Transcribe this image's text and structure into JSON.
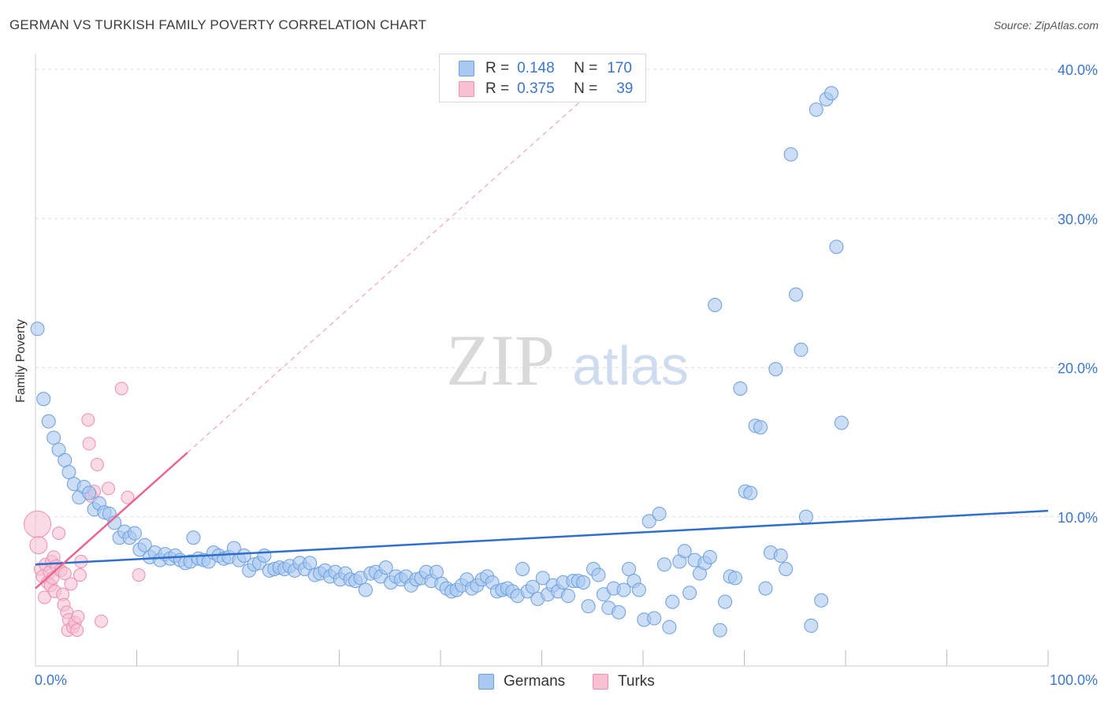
{
  "header": {
    "title": "GERMAN VS TURKISH FAMILY POVERTY CORRELATION CHART",
    "source": "Source: ZipAtlas.com"
  },
  "watermark": {
    "zip": "ZIP",
    "atlas": "atlas"
  },
  "stats_legend": {
    "rows": [
      {
        "r_label": "R =",
        "r_value": "0.148",
        "n_label": "N =",
        "n_value": "170",
        "color": "#a9c8f0",
        "border": "#6c9fde"
      },
      {
        "r_label": "R =",
        "r_value": "0.375",
        "n_label": "N =",
        "n_value": "39",
        "color": "#f7c1d2",
        "border": "#ec8fb0"
      }
    ]
  },
  "colors": {
    "germans_fill": "#a9c8f0",
    "germans_stroke": "#6c9fde",
    "germans_line": "#2f6fcc",
    "turks_fill": "#f7c1d2",
    "turks_stroke": "#ec8fb0",
    "turks_line": "#e8658f",
    "tick_label": "#3b77c8",
    "grid": "#dddddd"
  },
  "chart_data": {
    "type": "scatter",
    "title": "GERMAN VS TURKISH FAMILY POVERTY CORRELATION CHART",
    "xlabel": "",
    "ylabel": "Family Poverty",
    "xlim": [
      0,
      100
    ],
    "ylim": [
      0,
      40
    ],
    "x_tick_labels": [
      "0.0%",
      "100.0%"
    ],
    "y_ticks": [
      10,
      20,
      30,
      40
    ],
    "y_tick_labels": [
      "10.0%",
      "20.0%",
      "30.0%",
      "40.0%"
    ],
    "grid": true,
    "legend_position": "bottom-center",
    "series": [
      {
        "name": "Germans",
        "r": 0.148,
        "n": 170,
        "trend": {
          "x": [
            0,
            100
          ],
          "y": [
            6.8,
            10.4
          ]
        },
        "points": [
          [
            0.2,
            22.6
          ],
          [
            0.8,
            17.9
          ],
          [
            1.3,
            16.4
          ],
          [
            1.8,
            15.3
          ],
          [
            2.3,
            14.5
          ],
          [
            2.9,
            13.8
          ],
          [
            3.3,
            13.0
          ],
          [
            3.8,
            12.2
          ],
          [
            4.3,
            11.3
          ],
          [
            4.8,
            12.0
          ],
          [
            5.3,
            11.6
          ],
          [
            5.8,
            10.5
          ],
          [
            6.3,
            10.9
          ],
          [
            6.8,
            10.3
          ],
          [
            7.3,
            10.2
          ],
          [
            7.8,
            9.6
          ],
          [
            8.3,
            8.6
          ],
          [
            8.8,
            9.0
          ],
          [
            9.3,
            8.6
          ],
          [
            9.8,
            8.9
          ],
          [
            10.3,
            7.8
          ],
          [
            10.8,
            8.1
          ],
          [
            11.3,
            7.3
          ],
          [
            11.8,
            7.6
          ],
          [
            12.3,
            7.1
          ],
          [
            12.8,
            7.5
          ],
          [
            13.3,
            7.2
          ],
          [
            13.8,
            7.4
          ],
          [
            14.3,
            7.1
          ],
          [
            14.8,
            6.9
          ],
          [
            15.3,
            7.0
          ],
          [
            15.6,
            8.6
          ],
          [
            16.1,
            7.2
          ],
          [
            16.6,
            7.1
          ],
          [
            17.1,
            7.0
          ],
          [
            17.6,
            7.6
          ],
          [
            18.1,
            7.4
          ],
          [
            18.6,
            7.2
          ],
          [
            19.1,
            7.3
          ],
          [
            19.6,
            7.9
          ],
          [
            20.1,
            7.1
          ],
          [
            20.6,
            7.4
          ],
          [
            21.1,
            6.4
          ],
          [
            21.6,
            6.8
          ],
          [
            22.1,
            6.9
          ],
          [
            22.6,
            7.4
          ],
          [
            23.1,
            6.4
          ],
          [
            23.6,
            6.5
          ],
          [
            24.1,
            6.6
          ],
          [
            24.6,
            6.5
          ],
          [
            25.1,
            6.7
          ],
          [
            25.6,
            6.4
          ],
          [
            26.1,
            6.9
          ],
          [
            26.6,
            6.5
          ],
          [
            27.1,
            6.9
          ],
          [
            27.6,
            6.1
          ],
          [
            28.1,
            6.2
          ],
          [
            28.6,
            6.4
          ],
          [
            29.1,
            6.0
          ],
          [
            29.6,
            6.3
          ],
          [
            30.1,
            5.8
          ],
          [
            30.6,
            6.2
          ],
          [
            31.1,
            5.8
          ],
          [
            31.6,
            5.7
          ],
          [
            32.1,
            5.9
          ],
          [
            32.6,
            5.1
          ],
          [
            33.1,
            6.2
          ],
          [
            33.6,
            6.3
          ],
          [
            34.1,
            6.0
          ],
          [
            34.6,
            6.6
          ],
          [
            35.1,
            5.6
          ],
          [
            35.6,
            6.0
          ],
          [
            36.1,
            5.8
          ],
          [
            36.6,
            6.0
          ],
          [
            37.1,
            5.4
          ],
          [
            37.6,
            5.8
          ],
          [
            38.1,
            5.9
          ],
          [
            38.6,
            6.3
          ],
          [
            39.1,
            5.7
          ],
          [
            39.6,
            6.3
          ],
          [
            40.1,
            5.5
          ],
          [
            40.6,
            5.2
          ],
          [
            41.1,
            5.0
          ],
          [
            41.6,
            5.1
          ],
          [
            42.1,
            5.4
          ],
          [
            42.6,
            5.8
          ],
          [
            43.1,
            5.2
          ],
          [
            43.6,
            5.4
          ],
          [
            44.1,
            5.8
          ],
          [
            44.6,
            6.0
          ],
          [
            45.1,
            5.6
          ],
          [
            45.6,
            5.0
          ],
          [
            46.1,
            5.1
          ],
          [
            46.6,
            5.2
          ],
          [
            47.1,
            5.0
          ],
          [
            47.6,
            4.7
          ],
          [
            48.1,
            6.5
          ],
          [
            48.6,
            5.0
          ],
          [
            49.1,
            5.3
          ],
          [
            49.6,
            4.5
          ],
          [
            50.1,
            5.9
          ],
          [
            50.6,
            4.8
          ],
          [
            51.1,
            5.4
          ],
          [
            51.6,
            5.0
          ],
          [
            52.1,
            5.6
          ],
          [
            52.6,
            4.7
          ],
          [
            53.1,
            5.7
          ],
          [
            53.6,
            5.7
          ],
          [
            54.1,
            5.6
          ],
          [
            54.6,
            4.0
          ],
          [
            55.1,
            6.5
          ],
          [
            55.6,
            6.1
          ],
          [
            56.1,
            4.8
          ],
          [
            56.6,
            3.9
          ],
          [
            57.1,
            5.2
          ],
          [
            57.6,
            3.6
          ],
          [
            58.1,
            5.1
          ],
          [
            58.6,
            6.5
          ],
          [
            59.1,
            5.7
          ],
          [
            59.6,
            5.1
          ],
          [
            60.1,
            3.1
          ],
          [
            60.6,
            9.7
          ],
          [
            61.1,
            3.2
          ],
          [
            61.6,
            10.2
          ],
          [
            62.1,
            6.8
          ],
          [
            62.6,
            2.6
          ],
          [
            62.9,
            4.3
          ],
          [
            63.6,
            7.0
          ],
          [
            64.1,
            7.7
          ],
          [
            64.6,
            4.9
          ],
          [
            65.1,
            7.1
          ],
          [
            65.6,
            6.2
          ],
          [
            66.1,
            6.9
          ],
          [
            66.6,
            7.3
          ],
          [
            67.1,
            24.2
          ],
          [
            67.6,
            2.4
          ],
          [
            68.1,
            4.3
          ],
          [
            68.6,
            6.0
          ],
          [
            69.1,
            5.9
          ],
          [
            69.6,
            18.6
          ],
          [
            70.1,
            11.7
          ],
          [
            70.6,
            11.6
          ],
          [
            71.1,
            16.1
          ],
          [
            71.6,
            16.0
          ],
          [
            72.1,
            5.2
          ],
          [
            72.6,
            7.6
          ],
          [
            73.1,
            19.9
          ],
          [
            73.6,
            7.4
          ],
          [
            74.1,
            6.5
          ],
          [
            74.6,
            34.3
          ],
          [
            75.1,
            24.9
          ],
          [
            75.6,
            21.2
          ],
          [
            76.1,
            10.0
          ],
          [
            76.6,
            2.7
          ],
          [
            77.1,
            37.3
          ],
          [
            77.6,
            4.4
          ],
          [
            78.1,
            38.0
          ],
          [
            78.6,
            38.4
          ],
          [
            79.1,
            28.1
          ],
          [
            79.6,
            16.3
          ]
        ]
      },
      {
        "name": "Turks",
        "r": 0.375,
        "n": 39,
        "trend": {
          "x": [
            0,
            15
          ],
          "y": [
            5.2,
            14.3
          ]
        },
        "points": [
          [
            0.2,
            9.5
          ],
          [
            0.3,
            8.1
          ],
          [
            0.5,
            6.5
          ],
          [
            0.7,
            6.0
          ],
          [
            0.9,
            4.6
          ],
          [
            1.0,
            6.8
          ],
          [
            1.2,
            5.6
          ],
          [
            1.4,
            6.3
          ],
          [
            1.5,
            5.4
          ],
          [
            1.6,
            7.0
          ],
          [
            1.7,
            5.9
          ],
          [
            1.8,
            7.3
          ],
          [
            1.9,
            5.0
          ],
          [
            2.1,
            6.7
          ],
          [
            2.3,
            8.9
          ],
          [
            2.5,
            6.4
          ],
          [
            2.7,
            4.8
          ],
          [
            2.8,
            4.1
          ],
          [
            2.9,
            6.2
          ],
          [
            3.1,
            3.6
          ],
          [
            3.2,
            2.4
          ],
          [
            3.3,
            3.1
          ],
          [
            3.5,
            5.5
          ],
          [
            3.7,
            2.6
          ],
          [
            3.9,
            2.9
          ],
          [
            4.1,
            2.4
          ],
          [
            4.2,
            3.3
          ],
          [
            4.4,
            6.1
          ],
          [
            4.5,
            7.0
          ],
          [
            5.2,
            16.5
          ],
          [
            5.3,
            14.9
          ],
          [
            5.5,
            11.4
          ],
          [
            5.8,
            11.7
          ],
          [
            6.1,
            13.5
          ],
          [
            6.5,
            3.0
          ],
          [
            8.5,
            18.6
          ],
          [
            9.1,
            11.3
          ],
          [
            10.2,
            6.1
          ],
          [
            7.2,
            11.9
          ]
        ]
      }
    ]
  },
  "bottom_legend": {
    "items": [
      "Germans",
      "Turks"
    ]
  }
}
